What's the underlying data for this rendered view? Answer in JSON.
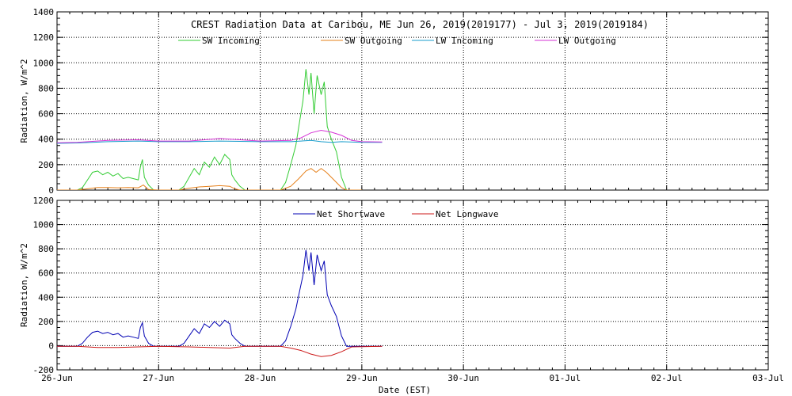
{
  "chart_data": [
    {
      "type": "line",
      "title": "CREST Radiation Data at Caribou, ME   Jun 26, 2019(2019177) - Jul  3, 2019(2019184)",
      "ylabel": "Radiation, W/m^2",
      "xlabel": "",
      "ylim": [
        0,
        1400
      ],
      "yticks": [
        0,
        200,
        400,
        600,
        800,
        1000,
        1200,
        1400
      ],
      "xlim": [
        "2019-06-26",
        "2019-07-03"
      ],
      "grid": true,
      "legend": "top",
      "series": [
        {
          "name": "SW Incoming",
          "color": "#33cc33",
          "points": [
            [
              0,
              0
            ],
            [
              0.2,
              0
            ],
            [
              0.25,
              20
            ],
            [
              0.3,
              80
            ],
            [
              0.35,
              140
            ],
            [
              0.4,
              150
            ],
            [
              0.45,
              120
            ],
            [
              0.5,
              140
            ],
            [
              0.55,
              110
            ],
            [
              0.6,
              130
            ],
            [
              0.65,
              90
            ],
            [
              0.7,
              100
            ],
            [
              0.75,
              90
            ],
            [
              0.8,
              80
            ],
            [
              0.82,
              180
            ],
            [
              0.84,
              240
            ],
            [
              0.86,
              100
            ],
            [
              0.9,
              40
            ],
            [
              0.95,
              0
            ],
            [
              1.0,
              0
            ],
            [
              1.2,
              0
            ],
            [
              1.25,
              30
            ],
            [
              1.3,
              100
            ],
            [
              1.35,
              170
            ],
            [
              1.4,
              120
            ],
            [
              1.45,
              220
            ],
            [
              1.5,
              180
            ],
            [
              1.55,
              260
            ],
            [
              1.6,
              200
            ],
            [
              1.65,
              280
            ],
            [
              1.7,
              240
            ],
            [
              1.72,
              120
            ],
            [
              1.75,
              80
            ],
            [
              1.8,
              30
            ],
            [
              1.85,
              0
            ],
            [
              2.0,
              0
            ],
            [
              2.2,
              0
            ],
            [
              2.25,
              60
            ],
            [
              2.3,
              200
            ],
            [
              2.35,
              350
            ],
            [
              2.38,
              500
            ],
            [
              2.42,
              700
            ],
            [
              2.45,
              950
            ],
            [
              2.48,
              750
            ],
            [
              2.5,
              920
            ],
            [
              2.53,
              600
            ],
            [
              2.56,
              900
            ],
            [
              2.6,
              750
            ],
            [
              2.63,
              850
            ],
            [
              2.66,
              500
            ],
            [
              2.7,
              400
            ],
            [
              2.75,
              300
            ],
            [
              2.8,
              100
            ],
            [
              2.85,
              0
            ],
            [
              3.0,
              0
            ]
          ]
        },
        {
          "name": "SW Outgoing",
          "color": "#e6801a",
          "points": [
            [
              0,
              0
            ],
            [
              0.2,
              0
            ],
            [
              0.3,
              10
            ],
            [
              0.4,
              20
            ],
            [
              0.5,
              20
            ],
            [
              0.6,
              18
            ],
            [
              0.7,
              20
            ],
            [
              0.8,
              18
            ],
            [
              0.85,
              40
            ],
            [
              0.9,
              5
            ],
            [
              1.0,
              0
            ],
            [
              1.2,
              0
            ],
            [
              1.3,
              15
            ],
            [
              1.4,
              25
            ],
            [
              1.5,
              30
            ],
            [
              1.6,
              35
            ],
            [
              1.7,
              30
            ],
            [
              1.75,
              10
            ],
            [
              1.8,
              0
            ],
            [
              2.0,
              0
            ],
            [
              2.2,
              0
            ],
            [
              2.3,
              30
            ],
            [
              2.38,
              90
            ],
            [
              2.45,
              150
            ],
            [
              2.5,
              170
            ],
            [
              2.55,
              140
            ],
            [
              2.6,
              170
            ],
            [
              2.65,
              140
            ],
            [
              2.7,
              100
            ],
            [
              2.75,
              60
            ],
            [
              2.8,
              20
            ],
            [
              2.85,
              0
            ],
            [
              3.0,
              0
            ]
          ]
        },
        {
          "name": "LW Incoming",
          "color": "#1a9ecc",
          "points": [
            [
              -0.1,
              365
            ],
            [
              0.2,
              370
            ],
            [
              0.5,
              380
            ],
            [
              0.8,
              385
            ],
            [
              1.0,
              380
            ],
            [
              1.3,
              380
            ],
            [
              1.6,
              385
            ],
            [
              2.0,
              380
            ],
            [
              2.3,
              380
            ],
            [
              2.5,
              390
            ],
            [
              2.6,
              380
            ],
            [
              2.7,
              375
            ],
            [
              2.8,
              380
            ],
            [
              3.0,
              375
            ],
            [
              3.2,
              375
            ]
          ]
        },
        {
          "name": "LW Outgoing",
          "color": "#d633d6",
          "points": [
            [
              -0.1,
              370
            ],
            [
              0.2,
              375
            ],
            [
              0.5,
              390
            ],
            [
              0.8,
              395
            ],
            [
              1.0,
              385
            ],
            [
              1.3,
              385
            ],
            [
              1.6,
              405
            ],
            [
              1.8,
              395
            ],
            [
              2.0,
              385
            ],
            [
              2.3,
              390
            ],
            [
              2.4,
              410
            ],
            [
              2.5,
              450
            ],
            [
              2.6,
              470
            ],
            [
              2.7,
              455
            ],
            [
              2.8,
              430
            ],
            [
              2.9,
              390
            ],
            [
              3.0,
              380
            ],
            [
              3.2,
              378
            ]
          ]
        }
      ]
    },
    {
      "type": "line",
      "title": "",
      "ylabel": "Radiation, W/m^2",
      "xlabel": "Date (EST)",
      "ylim": [
        -200,
        1200
      ],
      "yticks": [
        -200,
        0,
        200,
        400,
        600,
        800,
        1000,
        1200
      ],
      "xticks": [
        "26-Jun",
        "27-Jun",
        "28-Jun",
        "29-Jun",
        "30-Jun",
        "01-Jul",
        "02-Jul",
        "03-Jul"
      ],
      "grid": true,
      "legend": "top",
      "series": [
        {
          "name": "Net Shortwave",
          "color": "#0000b3",
          "points": [
            [
              -0.2,
              -5
            ],
            [
              0.2,
              -5
            ],
            [
              0.25,
              20
            ],
            [
              0.3,
              70
            ],
            [
              0.35,
              110
            ],
            [
              0.4,
              120
            ],
            [
              0.45,
              100
            ],
            [
              0.5,
              110
            ],
            [
              0.55,
              90
            ],
            [
              0.6,
              100
            ],
            [
              0.65,
              70
            ],
            [
              0.7,
              80
            ],
            [
              0.75,
              70
            ],
            [
              0.8,
              60
            ],
            [
              0.82,
              150
            ],
            [
              0.84,
              190
            ],
            [
              0.86,
              80
            ],
            [
              0.9,
              20
            ],
            [
              0.95,
              -5
            ],
            [
              1.2,
              -5
            ],
            [
              1.25,
              20
            ],
            [
              1.3,
              80
            ],
            [
              1.35,
              140
            ],
            [
              1.4,
              100
            ],
            [
              1.45,
              180
            ],
            [
              1.5,
              150
            ],
            [
              1.55,
              200
            ],
            [
              1.6,
              160
            ],
            [
              1.65,
              210
            ],
            [
              1.7,
              180
            ],
            [
              1.72,
              90
            ],
            [
              1.75,
              60
            ],
            [
              1.8,
              20
            ],
            [
              1.85,
              -5
            ],
            [
              2.2,
              -5
            ],
            [
              2.25,
              40
            ],
            [
              2.3,
              160
            ],
            [
              2.35,
              300
            ],
            [
              2.38,
              420
            ],
            [
              2.42,
              580
            ],
            [
              2.45,
              790
            ],
            [
              2.48,
              620
            ],
            [
              2.5,
              770
            ],
            [
              2.53,
              500
            ],
            [
              2.56,
              750
            ],
            [
              2.6,
              620
            ],
            [
              2.63,
              700
            ],
            [
              2.66,
              420
            ],
            [
              2.7,
              330
            ],
            [
              2.75,
              240
            ],
            [
              2.8,
              80
            ],
            [
              2.85,
              -5
            ],
            [
              3.2,
              -5
            ]
          ]
        },
        {
          "name": "Net Longwave",
          "color": "#cc1a1a",
          "points": [
            [
              -0.2,
              -5
            ],
            [
              0.2,
              -5
            ],
            [
              0.4,
              -15
            ],
            [
              0.6,
              -15
            ],
            [
              0.8,
              -10
            ],
            [
              1.0,
              -5
            ],
            [
              1.3,
              -10
            ],
            [
              1.5,
              -15
            ],
            [
              1.7,
              -20
            ],
            [
              1.85,
              -5
            ],
            [
              2.2,
              -5
            ],
            [
              2.3,
              -20
            ],
            [
              2.4,
              -40
            ],
            [
              2.5,
              -70
            ],
            [
              2.6,
              -90
            ],
            [
              2.7,
              -80
            ],
            [
              2.8,
              -50
            ],
            [
              2.9,
              -10
            ],
            [
              3.2,
              -5
            ]
          ]
        }
      ]
    }
  ]
}
